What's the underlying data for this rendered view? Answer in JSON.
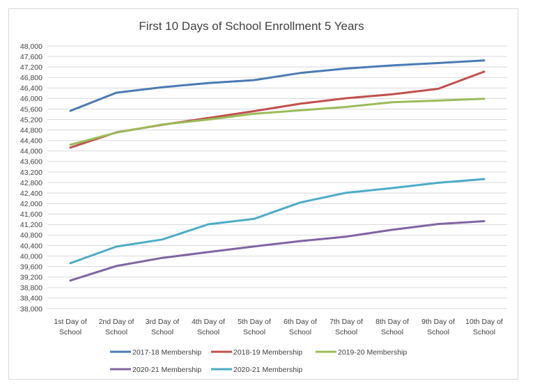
{
  "chart_data": {
    "type": "line",
    "title": "First 10 Days of School Enrollment 5 Years",
    "xlabel": "",
    "ylabel": "",
    "categories": [
      [
        "1st Day of",
        "School"
      ],
      [
        "2nd Day of",
        "School"
      ],
      [
        "3rd Day of",
        "School"
      ],
      [
        "4th Day of",
        "School"
      ],
      [
        "5th Day of",
        "School"
      ],
      [
        "6th Day of",
        "School"
      ],
      [
        "7th Day of",
        "School"
      ],
      [
        "8th Day of",
        "School"
      ],
      [
        "9th Day of",
        "School"
      ],
      [
        "10th Day of",
        "School"
      ]
    ],
    "ylim": [
      38000,
      48000
    ],
    "ytick_step": 400,
    "ytick_labels": [
      "38,000",
      "38,400",
      "38,800",
      "39,200",
      "39,600",
      "40,000",
      "40,400",
      "40,800",
      "41,200",
      "41,600",
      "42,000",
      "42,400",
      "42,800",
      "43,200",
      "43,600",
      "44,000",
      "44,400",
      "44,800",
      "45,200",
      "45,600",
      "46,000",
      "46,400",
      "46,800",
      "47,200",
      "47,600",
      "48,000"
    ],
    "grid": true,
    "legend_position": "bottom",
    "series": [
      {
        "name": "2017-18 Membership",
        "color": "#4a7ab4",
        "values": [
          45530,
          46220,
          46430,
          46590,
          46700,
          46970,
          47140,
          47260,
          47350,
          47450
        ]
      },
      {
        "name": "2018-19 Membership",
        "color": "#c0504d",
        "values": [
          44130,
          44710,
          45000,
          45260,
          45520,
          45800,
          46010,
          46160,
          46370,
          47020
        ]
      },
      {
        "name": "2019-20 Membership",
        "color": "#9bbb59",
        "values": [
          44240,
          44700,
          45010,
          45200,
          45420,
          45550,
          45680,
          45860,
          45920,
          45990
        ]
      },
      {
        "name": "2020-21 Membership",
        "color": "#8064a2",
        "values": [
          39070,
          39620,
          39930,
          40150,
          40370,
          40570,
          40740,
          41000,
          41220,
          41330
        ]
      },
      {
        "name": "2020-21 Membership",
        "color": "#4bacc6",
        "values": [
          39730,
          40360,
          40630,
          41210,
          41420,
          42040,
          42410,
          42590,
          42790,
          42930
        ]
      }
    ]
  }
}
